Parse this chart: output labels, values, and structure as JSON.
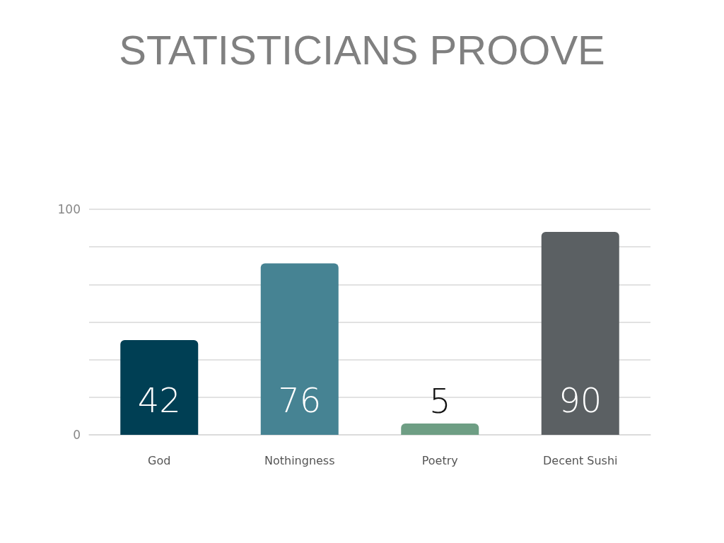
{
  "chart_data": {
    "type": "bar",
    "title": "STATISTICIANS PROOVE",
    "categories": [
      "God",
      "Nothingness",
      "Poetry",
      "Decent Sushi"
    ],
    "values": [
      42,
      76,
      5,
      90
    ],
    "colors": [
      "#003f54",
      "#468393",
      "#6e9e84",
      "#5b6063"
    ],
    "ylim": [
      0,
      100
    ],
    "yticks": [
      0,
      {
        "value": 16.67,
        "label": null
      },
      {
        "value": 33.33,
        "label": null
      },
      {
        "value": 50,
        "label": null
      },
      {
        "value": 66.67,
        "label": null
      },
      {
        "value": 83.33,
        "label": null
      },
      100
    ],
    "grid": "y",
    "data_labels": true
  }
}
